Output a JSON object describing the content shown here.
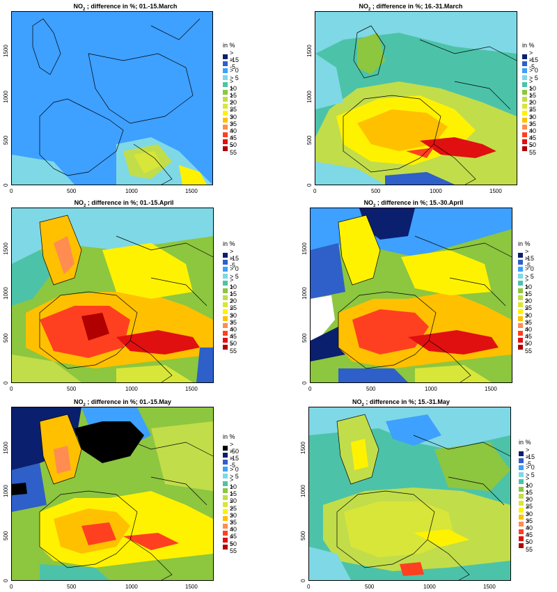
{
  "figure": {
    "legend_unit": "in %",
    "axis_ticks_x": [
      "0",
      "500",
      "1000",
      "1500"
    ],
    "axis_ticks_y": [
      "0",
      "500",
      "1000",
      "1500"
    ]
  },
  "colors": {
    "lt50": "#000000",
    "lt15": "#0a1f6e",
    "lt5": "#2f5fc8",
    "lt0": "#3ea0ff",
    "gt5": "#7fd8e6",
    "gt10": "#4cc3a8",
    "gt15": "#8dc63f",
    "gt20": "#c2dd4a",
    "gt25": "#d8e63a",
    "gt30": "#fff200",
    "gt35": "#ffc000",
    "gt40": "#ff8c50",
    "gt45": "#ff4020",
    "gt50": "#e01010",
    "gt55": "#b00000"
  },
  "panels": [
    {
      "id": "p1",
      "title_pre": "NO",
      "title_sub": "2",
      "title_post": " ; difference in %; 01.-15.March",
      "legend": [
        ">  -15",
        ">  -5",
        ">  0",
        ">  5",
        ">  10",
        ">  15",
        ">  20",
        ">  25",
        ">  30",
        ">  35",
        ">  40",
        ">  45",
        ">  50",
        ">  55"
      ],
      "legend_keys": [
        "lt15",
        "lt5",
        "lt0",
        "gt5",
        "gt10",
        "gt15",
        "gt20",
        "gt25",
        "gt30",
        "gt35",
        "gt40",
        "gt45",
        "gt50",
        "gt55"
      ]
    },
    {
      "id": "p2",
      "title_pre": "NO",
      "title_sub": "2",
      "title_post": " ; difference in %; 16.-31.March",
      "legend": [
        ">  -15",
        ">  -5",
        ">  0",
        ">  5",
        ">  10",
        ">  15",
        ">  20",
        ">  25",
        ">  30",
        ">  35",
        ">  40",
        ">  45",
        ">  50",
        ">  55"
      ],
      "legend_keys": [
        "lt15",
        "lt5",
        "lt0",
        "gt5",
        "gt10",
        "gt15",
        "gt20",
        "gt25",
        "gt30",
        "gt35",
        "gt40",
        "gt45",
        "gt50",
        "gt55"
      ]
    },
    {
      "id": "p3",
      "title_pre": "NO",
      "title_sub": "2",
      "title_post": " ; difference in %; 01.-15.April",
      "legend": [
        ">  -15",
        ">  -5",
        ">  0",
        ">  5",
        ">  10",
        ">  15",
        ">  20",
        ">  25",
        ">  30",
        ">  35",
        ">  40",
        ">  45",
        ">  50",
        ">  55"
      ],
      "legend_keys": [
        "lt15",
        "lt5",
        "lt0",
        "gt5",
        "gt10",
        "gt15",
        "gt20",
        "gt25",
        "gt30",
        "gt35",
        "gt40",
        "gt45",
        "gt50",
        "gt55"
      ]
    },
    {
      "id": "p4",
      "title_pre": "NO",
      "title_sub": "2",
      "title_post": " ; difference in %; 15.-30.April",
      "legend": [
        ">  -15",
        ">  -5",
        ">  0",
        ">  5",
        ">  10",
        ">  15",
        ">  20",
        ">  25",
        ">  30",
        ">  35",
        ">  40",
        ">  45",
        ">  50",
        ">  55"
      ],
      "legend_keys": [
        "lt15",
        "lt5",
        "lt0",
        "gt5",
        "gt10",
        "gt15",
        "gt20",
        "gt25",
        "gt30",
        "gt35",
        "gt40",
        "gt45",
        "gt50",
        "gt55"
      ]
    },
    {
      "id": "p5",
      "title_pre": "NO",
      "title_sub": "2",
      "title_post": " ; difference in %; 01.-15.May",
      "legend": [
        ">  -50",
        ">  -15",
        ">  -5",
        ">  0",
        ">  5",
        ">  10",
        ">  15",
        ">  20",
        ">  25",
        ">  30",
        ">  35",
        ">  40",
        ">  45",
        ">  50",
        ">  55"
      ],
      "legend_keys": [
        "lt50",
        "lt15",
        "lt5",
        "lt0",
        "gt5",
        "gt10",
        "gt15",
        "gt20",
        "gt25",
        "gt30",
        "gt35",
        "gt40",
        "gt45",
        "gt50",
        "gt55"
      ]
    },
    {
      "id": "p6",
      "title_pre": "NO",
      "title_sub": "2",
      "title_post": " ; difference in %; 15.-31.May",
      "legend": [
        ">  -15",
        ">  -5",
        ">  0",
        ">  5",
        ">  10",
        ">  15",
        ">  20",
        ">  25",
        ">  30",
        ">  35",
        ">  40",
        ">  45",
        ">  50",
        ">  55"
      ],
      "legend_keys": [
        "lt15",
        "lt5",
        "lt0",
        "gt5",
        "gt10",
        "gt15",
        "gt20",
        "gt25",
        "gt30",
        "gt35",
        "gt40",
        "gt45",
        "gt50",
        "gt55"
      ]
    }
  ]
}
